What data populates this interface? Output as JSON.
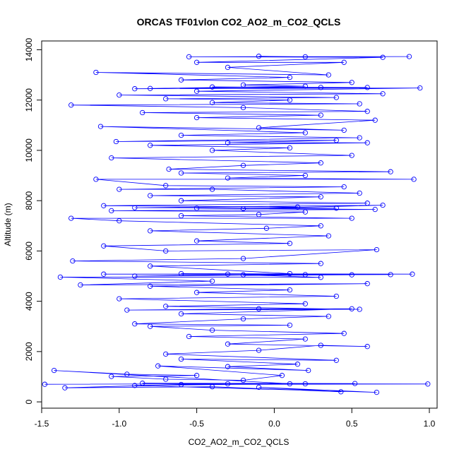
{
  "chart_data": {
    "type": "scatter",
    "title": "ORCAS TF01vlon CO2_AO2_m_CO2_QCLS",
    "xlabel": "CO2_AO2_m_CO2_QCLS",
    "ylabel": "Altitude (m)",
    "xlim": [
      -1.5,
      1.05
    ],
    "ylim": [
      -250,
      14350
    ],
    "x_ticks": [
      -1.5,
      -1.0,
      -0.5,
      0.0,
      0.5,
      1.0
    ],
    "x_tick_labels": [
      "-1.5",
      "-1.0",
      "-0.5",
      "0.0",
      "0.5",
      "1.0"
    ],
    "y_ticks": [
      0,
      2000,
      4000,
      6000,
      8000,
      10000,
      12000,
      14000
    ],
    "y_tick_labels": [
      "0",
      "2000",
      "4000",
      "6000",
      "8000",
      "10000",
      "12000",
      "14000"
    ],
    "series_color": "#0000ff",
    "marker": "open-circle",
    "connected": true,
    "series": [
      {
        "name": "CO2_AO2_m_CO2_QCLS",
        "points": [
          [
            -1.48,
            700
          ],
          [
            -0.3,
            720
          ],
          [
            0.52,
            730
          ],
          [
            -0.85,
            740
          ],
          [
            0.2,
            720
          ],
          [
            0.99,
            710
          ],
          [
            -0.6,
            690
          ],
          [
            -1.35,
            560
          ],
          [
            -0.4,
            600
          ],
          [
            0.43,
            400
          ],
          [
            -0.1,
            580
          ],
          [
            0.66,
            380
          ],
          [
            -0.9,
            650
          ],
          [
            0.1,
            720
          ],
          [
            -1.42,
            1250
          ],
          [
            -0.95,
            1100
          ],
          [
            -0.5,
            1050
          ],
          [
            -1.05,
            1010
          ],
          [
            -0.7,
            900
          ],
          [
            -0.2,
            860
          ],
          [
            0.05,
            1050
          ],
          [
            -0.75,
            1430
          ],
          [
            0.22,
            1250
          ],
          [
            -0.3,
            1400
          ],
          [
            0.15,
            1500
          ],
          [
            -0.6,
            1700
          ],
          [
            0.4,
            1650
          ],
          [
            -0.7,
            1900
          ],
          [
            -0.1,
            2050
          ],
          [
            0.3,
            2250
          ],
          [
            0.6,
            2200
          ],
          [
            -0.3,
            2300
          ],
          [
            0.2,
            2500
          ],
          [
            -0.55,
            2600
          ],
          [
            0.45,
            2720
          ],
          [
            -0.4,
            2850
          ],
          [
            -0.8,
            3000
          ],
          [
            0.1,
            3050
          ],
          [
            -0.9,
            3100
          ],
          [
            -0.2,
            3300
          ],
          [
            0.35,
            3400
          ],
          [
            -0.6,
            3500
          ],
          [
            0.5,
            3700
          ],
          [
            -0.1,
            3700
          ],
          [
            -0.95,
            3650
          ],
          [
            0.55,
            3680
          ],
          [
            -0.7,
            3800
          ],
          [
            0.2,
            3900
          ],
          [
            -1.0,
            4100
          ],
          [
            0.4,
            4200
          ],
          [
            -0.5,
            4350
          ],
          [
            0.1,
            4450
          ],
          [
            -0.8,
            4600
          ],
          [
            0.6,
            4700
          ],
          [
            -1.25,
            4650
          ],
          [
            -0.4,
            4800
          ],
          [
            -1.38,
            4960
          ],
          [
            0.3,
            4950
          ],
          [
            -0.2,
            5050
          ],
          [
            0.75,
            5060
          ],
          [
            -1.1,
            5080
          ],
          [
            0.89,
            5080
          ],
          [
            -0.6,
            5100
          ],
          [
            0.2,
            5060
          ],
          [
            -0.3,
            5080
          ],
          [
            0.5,
            5050
          ],
          [
            -0.9,
            5000
          ],
          [
            0.1,
            5100
          ],
          [
            -0.8,
            5400
          ],
          [
            0.3,
            5500
          ],
          [
            -1.3,
            5600
          ],
          [
            -0.2,
            5700
          ],
          [
            0.66,
            6050
          ],
          [
            -0.7,
            6000
          ],
          [
            -1.1,
            6200
          ],
          [
            0.1,
            6300
          ],
          [
            -0.5,
            6400
          ],
          [
            0.35,
            6600
          ],
          [
            -0.8,
            6800
          ],
          [
            -0.05,
            6900
          ],
          [
            0.3,
            7000
          ],
          [
            -1.0,
            7200
          ],
          [
            -1.31,
            7300
          ],
          [
            0.5,
            7300
          ],
          [
            -0.6,
            7400
          ],
          [
            -0.1,
            7450
          ],
          [
            0.2,
            7550
          ],
          [
            -1.05,
            7600
          ],
          [
            0.65,
            7650
          ],
          [
            -0.5,
            7700
          ],
          [
            0.4,
            7700
          ],
          [
            -0.9,
            7720
          ],
          [
            0.7,
            7820
          ],
          [
            -0.2,
            7680
          ],
          [
            0.15,
            7750
          ],
          [
            -1.1,
            7800
          ],
          [
            0.6,
            7900
          ],
          [
            -0.6,
            8000
          ],
          [
            0.3,
            8150
          ],
          [
            -0.8,
            8200
          ],
          [
            0.55,
            8300
          ],
          [
            -0.4,
            8450
          ],
          [
            -1.0,
            8450
          ],
          [
            0.45,
            8550
          ],
          [
            -0.7,
            8600
          ],
          [
            -1.15,
            8850
          ],
          [
            0.9,
            8850
          ],
          [
            -0.3,
            8900
          ],
          [
            0.2,
            9000
          ],
          [
            -0.6,
            9100
          ],
          [
            0.75,
            9150
          ],
          [
            -0.68,
            9250
          ],
          [
            -0.2,
            9400
          ],
          [
            0.3,
            9500
          ],
          [
            -1.05,
            9700
          ],
          [
            0.5,
            9800
          ],
          [
            -0.4,
            10000
          ],
          [
            0.1,
            10100
          ],
          [
            -0.8,
            10200
          ],
          [
            0.6,
            10300
          ],
          [
            -0.3,
            10300
          ],
          [
            0.4,
            10400
          ],
          [
            -1.02,
            10350
          ],
          [
            0.55,
            10500
          ],
          [
            -0.6,
            10600
          ],
          [
            0.2,
            10700
          ],
          [
            -1.12,
            10950
          ],
          [
            0.45,
            10800
          ],
          [
            -0.1,
            10900
          ],
          [
            0.65,
            11200
          ],
          [
            -0.5,
            11300
          ],
          [
            0.3,
            11400
          ],
          [
            -0.85,
            11500
          ],
          [
            0.6,
            11550
          ],
          [
            -0.2,
            11700
          ],
          [
            -1.31,
            11800
          ],
          [
            0.55,
            11850
          ],
          [
            -0.4,
            11900
          ],
          [
            0.1,
            12000
          ],
          [
            -0.7,
            12050
          ],
          [
            0.4,
            12100
          ],
          [
            -1.0,
            12200
          ],
          [
            0.7,
            12250
          ],
          [
            -0.5,
            12350
          ],
          [
            0.94,
            12480
          ],
          [
            -0.9,
            12450
          ],
          [
            0.3,
            12500
          ],
          [
            -0.4,
            12520
          ],
          [
            0.6,
            12500
          ],
          [
            -0.8,
            12460
          ],
          [
            0.2,
            12550
          ],
          [
            -0.2,
            12600
          ],
          [
            0.5,
            12700
          ],
          [
            -0.6,
            12800
          ],
          [
            0.1,
            12900
          ],
          [
            -1.15,
            13100
          ],
          [
            0.35,
            13000
          ],
          [
            -0.3,
            13300
          ],
          [
            0.45,
            13500
          ],
          [
            -0.5,
            13500
          ],
          [
            0.7,
            13700
          ],
          [
            -0.55,
            13720
          ],
          [
            0.87,
            13730
          ],
          [
            0.2,
            13720
          ],
          [
            -0.1,
            13740
          ]
        ]
      }
    ]
  }
}
